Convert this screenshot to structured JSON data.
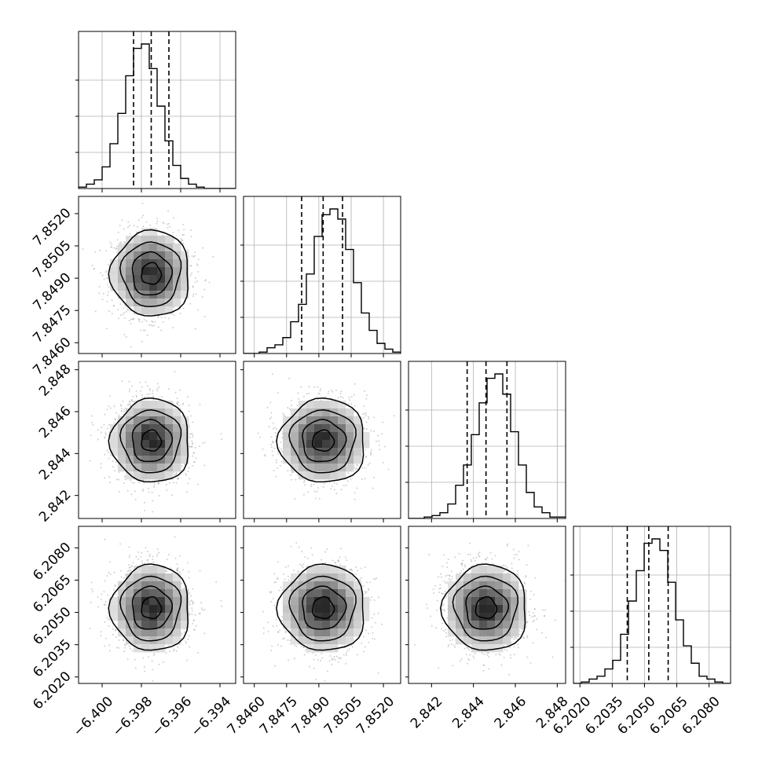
{
  "chart_data": {
    "type": "corner",
    "grid": true,
    "parameters": [
      {
        "mean": -6.3975,
        "sd": 0.001,
        "range": [
          -6.4012,
          -6.3932
        ],
        "quantiles": [
          -6.3984,
          -6.3975,
          -6.3966
        ],
        "ticks": [
          -6.4,
          -6.398,
          -6.396,
          -6.394
        ],
        "tick_labels": [
          "−6.400",
          "−6.398",
          "−6.396",
          "−6.394"
        ]
      },
      {
        "mean": 7.8492,
        "sd": 0.001,
        "range": [
          7.8455,
          7.8528
        ],
        "quantiles": [
          7.8482,
          7.8492,
          7.8501
        ],
        "ticks": [
          7.846,
          7.8475,
          7.849,
          7.8505,
          7.852
        ],
        "tick_labels": [
          "7.8460",
          "7.8475",
          "7.8490",
          "7.8505",
          "7.8520"
        ]
      },
      {
        "mean": 2.8446,
        "sd": 0.001,
        "range": [
          2.8409,
          2.8484
        ],
        "quantiles": [
          2.8437,
          2.8446,
          2.8456
        ],
        "ticks": [
          2.842,
          2.844,
          2.846,
          2.848
        ],
        "tick_labels": [
          "2.842",
          "2.844",
          "2.846",
          "2.848"
        ]
      },
      {
        "mean": 6.2052,
        "sd": 0.001,
        "range": [
          6.2017,
          6.209
        ],
        "quantiles": [
          6.2042,
          6.2052,
          6.2061
        ],
        "ticks": [
          6.202,
          6.2035,
          6.205,
          6.2065,
          6.208
        ],
        "tick_labels": [
          "6.2020",
          "6.2035",
          "6.2050",
          "6.2065",
          "6.2080"
        ]
      }
    ],
    "histogram_counts": [
      [
        1,
        3,
        6,
        15,
        31,
        52,
        78,
        97,
        100,
        83,
        57,
        33,
        16,
        7,
        3,
        1,
        0,
        0,
        0,
        0
      ],
      [
        0,
        0,
        1,
        4,
        6,
        11,
        22,
        34,
        55,
        81,
        96,
        100,
        93,
        72,
        49,
        28,
        16,
        7,
        3,
        1
      ],
      [
        0,
        0,
        1,
        2,
        4,
        10,
        23,
        37,
        58,
        80,
        97,
        100,
        86,
        60,
        37,
        18,
        8,
        4,
        1,
        1
      ],
      [
        0,
        1,
        3,
        5,
        10,
        16,
        34,
        57,
        78,
        97,
        100,
        92,
        70,
        44,
        26,
        14,
        5,
        3,
        1,
        0
      ]
    ],
    "contour_levels_sigma": [
      0.5,
      1.0,
      1.5,
      2.0
    ]
  }
}
